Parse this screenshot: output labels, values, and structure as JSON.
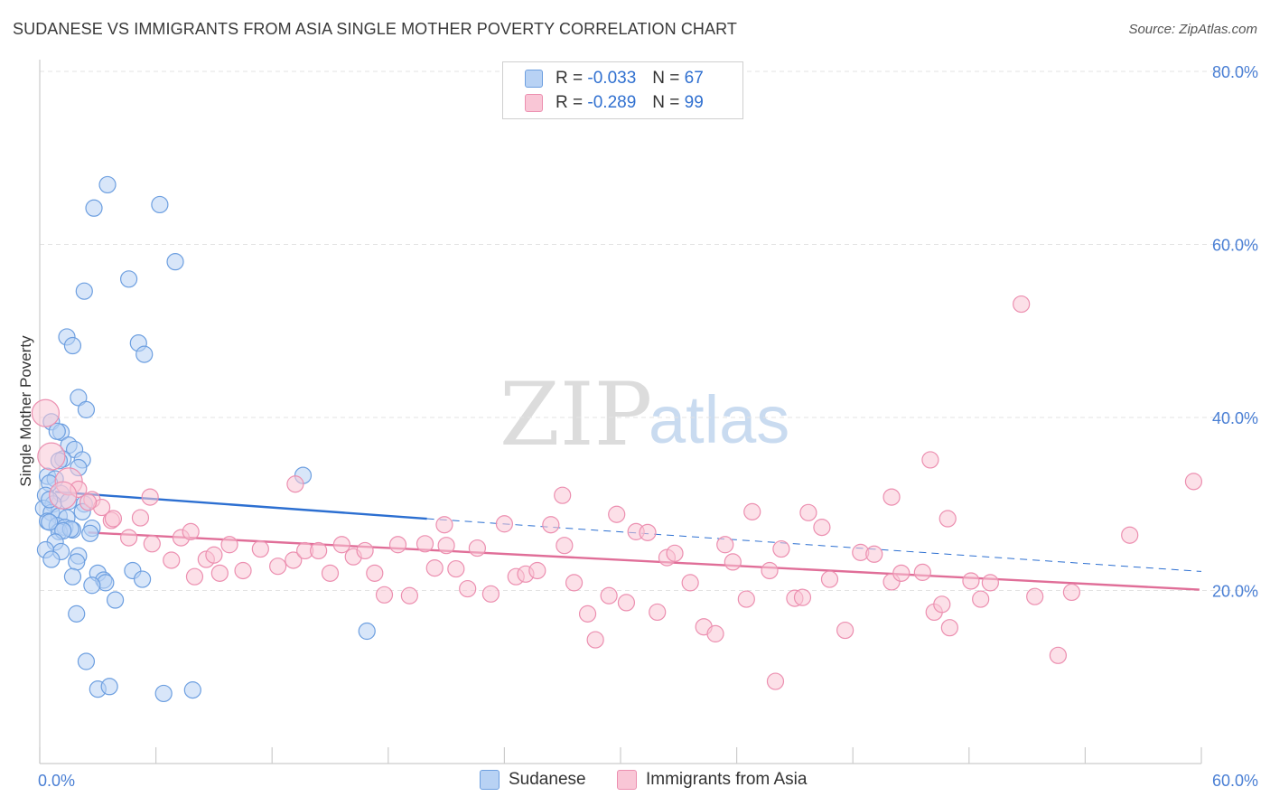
{
  "title": "SUDANESE VS IMMIGRANTS FROM ASIA SINGLE MOTHER POVERTY CORRELATION CHART",
  "source": "Source: ZipAtlas.com",
  "watermark": {
    "zip": "ZIP",
    "atlas": "atlas"
  },
  "colors": {
    "sudanese_fill": "#b8d2f4",
    "sudanese_stroke": "#6d9fe0",
    "sudanese_line": "#2c6fd1",
    "asia_fill": "#f9c6d6",
    "asia_stroke": "#ec8fb0",
    "asia_line": "#e06e98",
    "grid": "#e3e3e3",
    "axis": "#cccccc"
  },
  "legend": {
    "r_label": "R =",
    "n_label": "N =",
    "rows": [
      {
        "series": "sudanese",
        "r": "-0.033",
        "n": "67"
      },
      {
        "series": "asia",
        "r": "-0.289",
        "n": "99"
      }
    ]
  },
  "chart_data": {
    "type": "scatter",
    "title": "SUDANESE VS IMMIGRANTS FROM ASIA SINGLE MOTHER POVERTY CORRELATION CHART",
    "xlabel": "",
    "ylabel": "Single Mother Poverty",
    "xlim": [
      0,
      60
    ],
    "ylim": [
      0,
      80
    ],
    "x_tick_labels": [
      "0.0%",
      "60.0%"
    ],
    "y_ticks": [
      20,
      40,
      60,
      80
    ],
    "y_tick_labels": [
      "20.0%",
      "40.0%",
      "60.0%",
      "80.0%"
    ],
    "grid": true,
    "legend_position": "top-center",
    "series": [
      {
        "name": "Sudanese",
        "key": "sudanese",
        "r": -0.033,
        "n": 67,
        "trend": {
          "x0": 0.8,
          "y0": 31.4,
          "x1": 20.0,
          "y1": 28.3,
          "dash_to_x": 60,
          "dash_to_y": 22.2
        },
        "points": [
          [
            3.5,
            66.9
          ],
          [
            2.8,
            64.2
          ],
          [
            6.2,
            64.6
          ],
          [
            7.0,
            58.0
          ],
          [
            4.6,
            56.0
          ],
          [
            2.3,
            54.6
          ],
          [
            1.4,
            49.3
          ],
          [
            5.1,
            48.6
          ],
          [
            5.4,
            47.3
          ],
          [
            1.7,
            48.3
          ],
          [
            2.0,
            42.3
          ],
          [
            2.4,
            40.9
          ],
          [
            0.6,
            39.5
          ],
          [
            1.1,
            38.3
          ],
          [
            1.5,
            36.8
          ],
          [
            1.8,
            36.3
          ],
          [
            0.4,
            33.2
          ],
          [
            0.8,
            32.9
          ],
          [
            1.2,
            35.2
          ],
          [
            2.2,
            35.1
          ],
          [
            2.0,
            34.2
          ],
          [
            1.1,
            31.2
          ],
          [
            0.5,
            32.4
          ],
          [
            0.3,
            31.0
          ],
          [
            0.7,
            30.0
          ],
          [
            1.5,
            30.3
          ],
          [
            2.3,
            30.0
          ],
          [
            0.2,
            29.5
          ],
          [
            0.6,
            29.0
          ],
          [
            1.0,
            28.6
          ],
          [
            1.4,
            28.4
          ],
          [
            2.2,
            29.1
          ],
          [
            0.4,
            28.0
          ],
          [
            0.9,
            27.5
          ],
          [
            1.3,
            27.3
          ],
          [
            1.7,
            27.0
          ],
          [
            1.0,
            26.8
          ],
          [
            1.6,
            27.1
          ],
          [
            2.7,
            27.2
          ],
          [
            0.5,
            27.9
          ],
          [
            1.2,
            26.9
          ],
          [
            2.6,
            26.6
          ],
          [
            0.8,
            25.6
          ],
          [
            1.1,
            24.5
          ],
          [
            2.0,
            24.0
          ],
          [
            0.3,
            24.7
          ],
          [
            0.6,
            23.6
          ],
          [
            1.9,
            23.3
          ],
          [
            3.0,
            22.0
          ],
          [
            4.8,
            22.3
          ],
          [
            1.7,
            21.6
          ],
          [
            3.3,
            21.2
          ],
          [
            3.4,
            20.9
          ],
          [
            5.3,
            21.3
          ],
          [
            2.7,
            20.6
          ],
          [
            3.9,
            18.9
          ],
          [
            1.9,
            17.3
          ],
          [
            16.9,
            15.3
          ],
          [
            13.6,
            33.3
          ],
          [
            2.4,
            11.8
          ],
          [
            3.0,
            8.6
          ],
          [
            3.6,
            8.9
          ],
          [
            6.4,
            8.1
          ],
          [
            7.9,
            8.5
          ],
          [
            0.9,
            38.4
          ],
          [
            1.0,
            35.0
          ],
          [
            0.5,
            30.5
          ]
        ]
      },
      {
        "name": "Immigrants from Asia",
        "key": "asia",
        "r": -0.289,
        "n": 99,
        "trend": {
          "x0": 2.5,
          "y0": 26.7,
          "x1": 59.9,
          "y1": 20.1
        },
        "points": [
          [
            0.3,
            40.5
          ],
          [
            0.6,
            35.5
          ],
          [
            1.5,
            32.6
          ],
          [
            2.0,
            31.7
          ],
          [
            2.7,
            30.5
          ],
          [
            3.2,
            29.6
          ],
          [
            3.7,
            28.1
          ],
          [
            4.6,
            26.1
          ],
          [
            5.2,
            28.4
          ],
          [
            5.8,
            25.4
          ],
          [
            6.8,
            23.5
          ],
          [
            7.3,
            26.1
          ],
          [
            7.8,
            26.8
          ],
          [
            8.6,
            23.6
          ],
          [
            9.0,
            24.1
          ],
          [
            9.3,
            22.0
          ],
          [
            9.8,
            25.3
          ],
          [
            10.5,
            22.3
          ],
          [
            11.4,
            24.8
          ],
          [
            12.3,
            22.8
          ],
          [
            13.1,
            23.5
          ],
          [
            13.7,
            24.6
          ],
          [
            14.4,
            24.6
          ],
          [
            15.0,
            22.0
          ],
          [
            15.6,
            25.3
          ],
          [
            16.2,
            23.9
          ],
          [
            16.8,
            24.6
          ],
          [
            17.3,
            22.0
          ],
          [
            17.8,
            19.5
          ],
          [
            18.5,
            25.3
          ],
          [
            19.1,
            19.4
          ],
          [
            19.9,
            25.4
          ],
          [
            20.4,
            22.6
          ],
          [
            21.0,
            25.2
          ],
          [
            21.5,
            22.5
          ],
          [
            22.1,
            20.2
          ],
          [
            22.6,
            24.9
          ],
          [
            23.3,
            19.6
          ],
          [
            24.0,
            27.7
          ],
          [
            24.6,
            21.6
          ],
          [
            25.1,
            21.9
          ],
          [
            25.7,
            22.3
          ],
          [
            26.4,
            27.6
          ],
          [
            27.1,
            25.2
          ],
          [
            27.6,
            20.9
          ],
          [
            28.3,
            17.3
          ],
          [
            28.7,
            14.3
          ],
          [
            29.4,
            19.4
          ],
          [
            29.8,
            28.8
          ],
          [
            30.3,
            18.6
          ],
          [
            30.8,
            26.8
          ],
          [
            31.4,
            26.7
          ],
          [
            31.9,
            17.5
          ],
          [
            32.4,
            23.8
          ],
          [
            32.8,
            24.3
          ],
          [
            33.6,
            20.9
          ],
          [
            34.3,
            15.8
          ],
          [
            34.9,
            15.0
          ],
          [
            35.4,
            25.3
          ],
          [
            35.8,
            23.3
          ],
          [
            36.5,
            19.0
          ],
          [
            36.8,
            29.1
          ],
          [
            37.7,
            22.3
          ],
          [
            38.3,
            24.8
          ],
          [
            39.0,
            19.1
          ],
          [
            39.4,
            19.2
          ],
          [
            39.7,
            29.0
          ],
          [
            40.4,
            27.3
          ],
          [
            40.8,
            21.3
          ],
          [
            41.6,
            15.4
          ],
          [
            42.4,
            24.4
          ],
          [
            43.1,
            24.2
          ],
          [
            44.0,
            21.0
          ],
          [
            44.5,
            22.0
          ],
          [
            45.6,
            22.1
          ],
          [
            46.2,
            17.5
          ],
          [
            46.6,
            18.4
          ],
          [
            46.9,
            28.3
          ],
          [
            47.0,
            15.7
          ],
          [
            48.1,
            21.1
          ],
          [
            48.6,
            19.0
          ],
          [
            49.1,
            20.9
          ],
          [
            50.7,
            53.1
          ],
          [
            51.4,
            19.3
          ],
          [
            53.3,
            19.8
          ],
          [
            52.6,
            12.5
          ],
          [
            44.0,
            30.8
          ],
          [
            46.0,
            35.1
          ],
          [
            56.3,
            26.4
          ],
          [
            59.6,
            32.6
          ],
          [
            13.2,
            32.3
          ],
          [
            5.7,
            30.8
          ],
          [
            3.8,
            28.3
          ],
          [
            1.2,
            31.0
          ],
          [
            2.5,
            30.2
          ],
          [
            38.0,
            9.5
          ],
          [
            20.9,
            27.6
          ],
          [
            8.0,
            21.6
          ],
          [
            27.0,
            31.0
          ]
        ]
      }
    ]
  },
  "bottom_legend": [
    {
      "series": "sudanese",
      "label": "Sudanese"
    },
    {
      "series": "asia",
      "label": "Immigrants from Asia"
    }
  ]
}
